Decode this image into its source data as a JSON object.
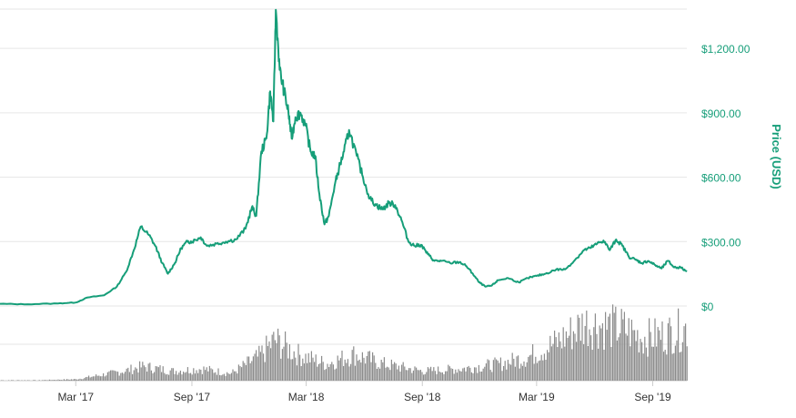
{
  "chart_data": {
    "type": "line",
    "ylabel": "Price (USD)",
    "ylim": [
      0,
      1400
    ],
    "y_ticks": [
      "$0",
      "$300.00",
      "$600.00",
      "$900.00",
      "$1,200.00"
    ],
    "y_tick_values": [
      0,
      300,
      600,
      900,
      1200
    ],
    "x_ticks": [
      "Mar '17",
      "Sep '17",
      "Mar '18",
      "Sep '18",
      "Mar '19",
      "Sep '19"
    ],
    "x_tick_values": [
      "2017-03-01",
      "2017-09-01",
      "2018-03-01",
      "2018-09-01",
      "2019-03-01",
      "2019-09-01"
    ],
    "x_range": [
      "2016-11-01",
      "2019-10-25"
    ],
    "grid": true,
    "series": [
      {
        "color": "#169e79",
        "x": [
          "2016-11-01",
          "2016-12-15",
          "2017-02-01",
          "2017-03-01",
          "2017-03-20",
          "2017-04-15",
          "2017-05-05",
          "2017-05-20",
          "2017-06-01",
          "2017-06-12",
          "2017-06-25",
          "2017-07-05",
          "2017-07-16",
          "2017-07-25",
          "2017-08-05",
          "2017-08-15",
          "2017-08-25",
          "2017-09-01",
          "2017-09-15",
          "2017-09-25",
          "2017-10-10",
          "2017-10-25",
          "2017-11-10",
          "2017-11-25",
          "2017-12-05",
          "2017-12-12",
          "2017-12-20",
          "2017-12-28",
          "2018-01-03",
          "2018-01-08",
          "2018-01-12",
          "2018-01-18",
          "2018-01-25",
          "2018-02-01",
          "2018-02-06",
          "2018-02-12",
          "2018-02-20",
          "2018-02-28",
          "2018-03-08",
          "2018-03-15",
          "2018-03-22",
          "2018-03-30",
          "2018-04-06",
          "2018-04-15",
          "2018-04-22",
          "2018-04-30",
          "2018-05-08",
          "2018-05-20",
          "2018-05-30",
          "2018-06-10",
          "2018-06-20",
          "2018-06-30",
          "2018-07-10",
          "2018-07-20",
          "2018-07-30",
          "2018-08-10",
          "2018-08-20",
          "2018-08-30",
          "2018-09-10",
          "2018-09-20",
          "2018-10-01",
          "2018-10-15",
          "2018-10-30",
          "2018-11-10",
          "2018-11-20",
          "2018-11-30",
          "2018-12-10",
          "2018-12-20",
          "2018-12-30",
          "2019-01-15",
          "2019-02-01",
          "2019-02-15",
          "2019-03-01",
          "2019-03-15",
          "2019-04-01",
          "2019-04-15",
          "2019-05-01",
          "2019-05-15",
          "2019-05-25",
          "2019-06-05",
          "2019-06-15",
          "2019-06-25",
          "2019-07-05",
          "2019-07-15",
          "2019-07-25",
          "2019-08-05",
          "2019-08-15",
          "2019-08-25",
          "2019-09-05",
          "2019-09-15",
          "2019-09-25",
          "2019-10-05",
          "2019-10-15",
          "2019-10-25"
        ],
        "values": [
          10,
          8,
          12,
          16,
          40,
          50,
          90,
          160,
          260,
          370,
          330,
          280,
          200,
          150,
          200,
          270,
          300,
          300,
          320,
          280,
          290,
          300,
          310,
          360,
          460,
          420,
          720,
          780,
          1000,
          860,
          1380,
          1100,
          1000,
          900,
          780,
          880,
          900,
          840,
          720,
          700,
          520,
          380,
          420,
          560,
          640,
          720,
          820,
          700,
          600,
          500,
          470,
          450,
          480,
          470,
          400,
          300,
          280,
          285,
          240,
          210,
          210,
          200,
          205,
          185,
          150,
          110,
          90,
          95,
          120,
          130,
          110,
          130,
          140,
          150,
          170,
          170,
          215,
          260,
          270,
          290,
          305,
          260,
          310,
          280,
          230,
          215,
          200,
          210,
          190,
          175,
          210,
          180,
          180,
          160
        ]
      }
    ],
    "volume": {
      "color": "#8c8c8c",
      "x": [
        "2016-11-01",
        "2017-01-01",
        "2017-03-01",
        "2017-05-15",
        "2017-06-15",
        "2017-08-01",
        "2017-09-15",
        "2017-11-01",
        "2017-12-15",
        "2018-01-10",
        "2018-02-15",
        "2018-04-01",
        "2018-05-15",
        "2018-07-01",
        "2018-09-01",
        "2018-11-01",
        "2019-01-01",
        "2019-02-15",
        "2019-04-01",
        "2019-05-15",
        "2019-06-15",
        "2019-07-15",
        "2019-08-15",
        "2019-09-15",
        "2019-10-25"
      ],
      "values": [
        1,
        1,
        3,
        20,
        30,
        20,
        25,
        15,
        50,
        85,
        55,
        35,
        55,
        35,
        20,
        25,
        35,
        50,
        80,
        120,
        115,
        110,
        90,
        95,
        110
      ]
    }
  }
}
